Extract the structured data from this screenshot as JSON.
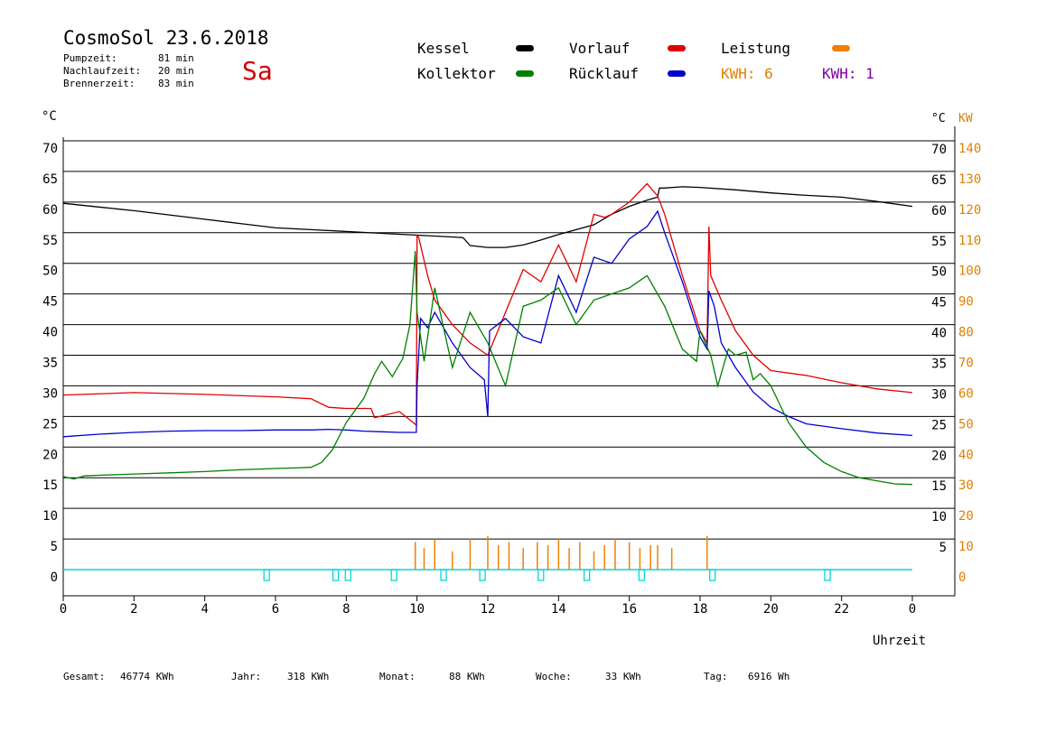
{
  "header": {
    "title": "CosmoSol 23.6.2018",
    "weekday": "Sa",
    "stats": [
      {
        "label": "Pumpzeit:",
        "value": "81 min"
      },
      {
        "label": "Nachlaufzeit:",
        "value": "20 min"
      },
      {
        "label": "Brennerzeit:",
        "value": "83 min"
      }
    ]
  },
  "legend": {
    "kessel": {
      "label": "Kessel",
      "color": "#000000"
    },
    "vorlauf": {
      "label": "Vorlauf",
      "color": "#e00000"
    },
    "leistung": {
      "label": "Leistung",
      "color": "#f08000"
    },
    "kollektor": {
      "label": "Kollektor",
      "color": "#008000"
    },
    "ruecklauf": {
      "label": "Rücklauf",
      "color": "#0000d0"
    },
    "kwh1": {
      "label": "KWH: 6",
      "color": "#e08000"
    },
    "kwh2": {
      "label": "KWH: 1",
      "color": "#8000a0"
    }
  },
  "axes": {
    "left_unit": "°C",
    "right_unit_temp": "°C",
    "right_unit_power": "KW",
    "x_label": "Uhrzeit"
  },
  "footer": [
    {
      "label": "Gesamt:",
      "value": "46774 KWh"
    },
    {
      "label": "Jahr:",
      "value": "318 KWh"
    },
    {
      "label": "Monat:",
      "value": "88 KWh"
    },
    {
      "label": "Woche:",
      "value": "33 KWh"
    },
    {
      "label": "Tag:",
      "value": "6916 Wh"
    }
  ],
  "chart_data": {
    "type": "line",
    "title": "CosmoSol 23.6.2018",
    "xlabel": "Uhrzeit",
    "ylabel": "°C",
    "xlim": [
      0,
      24
    ],
    "ylim": [
      0,
      70
    ],
    "y2lim": [
      0,
      140
    ],
    "grid": true,
    "legend_position": "top",
    "x_ticks": [
      "0",
      "2",
      "4",
      "6",
      "8",
      "10",
      "12",
      "14",
      "16",
      "18",
      "20",
      "22",
      "0"
    ],
    "y_ticks_left": [
      "0",
      "5",
      "10",
      "15",
      "20",
      "25",
      "30",
      "35",
      "40",
      "45",
      "50",
      "55",
      "60",
      "65",
      "70"
    ],
    "y_ticks_right_temp": [
      "5",
      "10",
      "15",
      "20",
      "25",
      "30",
      "35",
      "40",
      "45",
      "50",
      "55",
      "60",
      "65",
      "70"
    ],
    "y_ticks_right_power": [
      "0",
      "10",
      "20",
      "30",
      "40",
      "50",
      "60",
      "70",
      "80",
      "90",
      "100",
      "110",
      "120",
      "130",
      "140"
    ],
    "series": [
      {
        "name": "Kessel",
        "color": "#000000",
        "x": [
          0,
          1,
          2,
          3,
          4,
          5,
          6,
          7,
          8,
          9,
          10,
          11,
          11.3,
          11.5,
          12,
          12.5,
          13,
          13.5,
          14,
          14.5,
          15,
          15.5,
          16,
          16.5,
          16.8,
          16.85,
          17,
          17.5,
          18,
          19,
          20,
          21,
          22,
          23,
          24
        ],
        "y": [
          59.8,
          59.2,
          58.6,
          57.9,
          57.2,
          56.5,
          55.8,
          55.5,
          55.2,
          54.9,
          54.6,
          54.3,
          54.2,
          52.9,
          52.6,
          52.6,
          53.0,
          53.8,
          54.7,
          55.5,
          56.3,
          58.0,
          59.3,
          60.3,
          60.8,
          62.3,
          62.3,
          62.5,
          62.4,
          62.0,
          61.5,
          61.1,
          60.8,
          60.1,
          59.3
        ]
      },
      {
        "name": "Vorlauf",
        "color": "#e00000",
        "x": [
          0,
          2,
          4,
          6,
          7,
          7.5,
          8,
          8.7,
          8.8,
          9.5,
          9.98,
          10,
          10.05,
          10.3,
          10.5,
          11,
          11.5,
          12,
          12.5,
          13,
          13.5,
          14,
          14.5,
          15,
          15.3,
          15.5,
          16,
          16.5,
          16.8,
          17,
          17.5,
          18,
          18.2,
          18.25,
          18.3,
          18.6,
          19,
          19.5,
          20,
          21,
          22,
          23,
          24
        ],
        "y": [
          28.5,
          28.9,
          28.6,
          28.2,
          27.9,
          26.5,
          26.3,
          26.3,
          24.8,
          25.8,
          23.6,
          54.5,
          54.2,
          48.0,
          44.0,
          40.0,
          37.0,
          35.0,
          42.0,
          49.0,
          47.0,
          53.0,
          47.0,
          58.0,
          57.5,
          58.0,
          60.0,
          63.0,
          61.0,
          58.0,
          48.0,
          39.0,
          37.0,
          56.0,
          48.0,
          44.0,
          39.0,
          35.0,
          32.5,
          31.7,
          30.5,
          29.5,
          28.9
        ]
      },
      {
        "name": "Rücklauf",
        "color": "#0000d0",
        "x": [
          0,
          1,
          2,
          3,
          4,
          5,
          6,
          7,
          7.5,
          8,
          8.5,
          9,
          9.5,
          9.98,
          10,
          10.1,
          10.3,
          10.5,
          11,
          11.5,
          11.9,
          12,
          12.05,
          12.5,
          13,
          13.5,
          14,
          14.5,
          15,
          15.5,
          16,
          16.5,
          16.8,
          17,
          17.5,
          18,
          18.2,
          18.25,
          18.4,
          18.6,
          19,
          19.5,
          20,
          20.5,
          21,
          22,
          23,
          24
        ],
        "y": [
          21.7,
          22.1,
          22.4,
          22.6,
          22.7,
          22.7,
          22.8,
          22.8,
          22.9,
          22.8,
          22.6,
          22.5,
          22.4,
          22.4,
          30.0,
          41.0,
          39.5,
          42.0,
          37.0,
          33.0,
          31.0,
          25.0,
          39.0,
          41.0,
          38.0,
          37.0,
          48.0,
          42.0,
          51.0,
          50.0,
          54.0,
          56.0,
          58.5,
          55.0,
          47.0,
          38.0,
          36.0,
          45.5,
          43.0,
          37.0,
          33.0,
          29.0,
          26.5,
          25.0,
          23.8,
          23.0,
          22.3,
          21.9
        ]
      },
      {
        "name": "Kollektor",
        "color": "#008000",
        "x": [
          0,
          0.3,
          0.6,
          1,
          2,
          3,
          4,
          5,
          6,
          6.5,
          7,
          7.3,
          7.6,
          8,
          8.5,
          8.8,
          9,
          9.3,
          9.6,
          9.8,
          9.95,
          10,
          10.2,
          10.5,
          11,
          11.5,
          12,
          12.5,
          13,
          13.5,
          14,
          14.5,
          15,
          15.5,
          16,
          16.5,
          17,
          17.5,
          17.9,
          18,
          18.3,
          18.5,
          18.8,
          19,
          19.3,
          19.5,
          19.7,
          20,
          20.5,
          21,
          21.5,
          22,
          22.5,
          23,
          23.5,
          24
        ],
        "y": [
          15.2,
          14.8,
          15.3,
          15.4,
          15.6,
          15.8,
          16.0,
          16.3,
          16.5,
          16.6,
          16.7,
          17.5,
          19.5,
          24.0,
          28.0,
          32.0,
          34.0,
          31.5,
          34.5,
          40.0,
          52.0,
          42.0,
          34.0,
          46.0,
          33.0,
          42.0,
          37.0,
          30.0,
          43.0,
          44.0,
          46.0,
          40.0,
          44.0,
          45.0,
          46.0,
          48.0,
          43.0,
          36.0,
          34.0,
          39.0,
          35.0,
          30.0,
          36.0,
          35.0,
          35.5,
          31.0,
          32.0,
          30.0,
          24.0,
          20.0,
          17.5,
          16.0,
          15.0,
          14.5,
          14.0,
          13.9
        ]
      },
      {
        "name": "Leistung",
        "color": "#f08000",
        "x": [
          9.95,
          10.2,
          10.5,
          11,
          11.5,
          12,
          12.3,
          12.6,
          13,
          13.4,
          13.7,
          14,
          14.3,
          14.6,
          15,
          15.3,
          15.6,
          16,
          16.3,
          16.6,
          16.8,
          17.2,
          18.2
        ],
        "y": [
          9,
          7,
          10,
          6,
          10,
          11,
          8,
          9,
          7,
          9,
          8,
          10,
          7,
          9,
          6,
          8,
          10,
          9,
          7,
          8,
          8,
          7,
          11
        ]
      }
    ]
  }
}
